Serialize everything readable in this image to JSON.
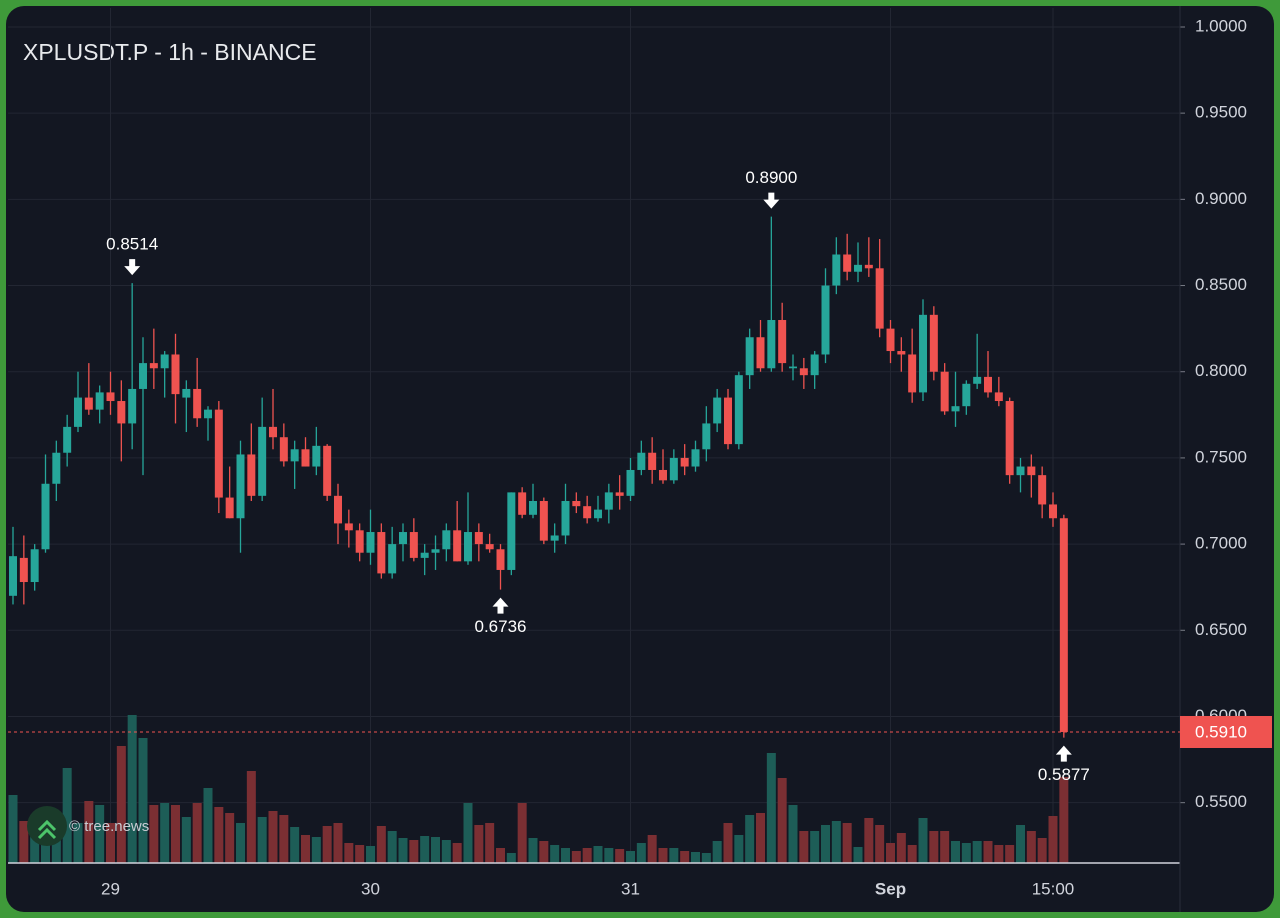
{
  "chart_data": {
    "type": "candlestick",
    "title": "XPLUSDT.P - 1h - BINANCE",
    "watermark": "© tree.news",
    "categories": [
      null,
      null,
      null,
      null,
      null,
      null,
      null,
      null,
      null,
      "29",
      null,
      null,
      null,
      null,
      null,
      null,
      null,
      null,
      null,
      null,
      null,
      null,
      null,
      null,
      null,
      null,
      null,
      null,
      null,
      null,
      null,
      null,
      null,
      "30",
      null,
      null,
      null,
      null,
      null,
      null,
      null,
      null,
      null,
      null,
      null,
      null,
      null,
      null,
      null,
      null,
      null,
      null,
      null,
      null,
      null,
      null,
      null,
      "31",
      null,
      null,
      null,
      null,
      null,
      null,
      null,
      null,
      null,
      null,
      null,
      null,
      null,
      null,
      null,
      null,
      null,
      null,
      null,
      null,
      null,
      null,
      null,
      "Sep",
      null,
      null,
      null,
      null,
      null,
      null,
      null,
      null,
      null,
      null,
      null,
      null,
      null,
      null,
      "15:00",
      null
    ],
    "open": [
      0.67,
      0.692,
      0.678,
      0.697,
      0.735,
      0.753,
      0.768,
      0.785,
      0.778,
      0.788,
      0.783,
      0.77,
      0.79,
      0.805,
      0.802,
      0.81,
      0.785,
      0.79,
      0.773,
      0.778,
      0.727,
      0.715,
      0.752,
      0.728,
      0.768,
      0.762,
      0.748,
      0.755,
      0.745,
      0.757,
      0.728,
      0.712,
      0.708,
      0.695,
      0.707,
      0.683,
      0.7,
      0.707,
      0.692,
      0.695,
      0.697,
      0.708,
      0.69,
      0.707,
      0.7,
      0.697,
      0.685,
      0.73,
      0.717,
      0.725,
      0.702,
      0.705,
      0.725,
      0.722,
      0.715,
      0.72,
      0.73,
      0.728,
      0.743,
      0.753,
      0.743,
      0.737,
      0.75,
      0.745,
      0.755,
      0.77,
      0.785,
      0.758,
      0.798,
      0.82,
      0.802,
      0.83,
      0.802,
      0.802,
      0.798,
      0.81,
      0.85,
      0.868,
      0.858,
      0.862,
      0.86,
      0.825,
      0.812,
      0.81,
      0.788,
      0.833,
      0.8,
      0.777,
      0.78,
      0.793,
      0.797,
      0.788,
      0.783,
      0.74,
      0.745,
      0.74,
      0.723,
      0.715
    ],
    "high": [
      0.71,
      0.705,
      0.7,
      0.752,
      0.76,
      0.775,
      0.8,
      0.805,
      0.792,
      0.8,
      0.795,
      0.8514,
      0.82,
      0.825,
      0.812,
      0.822,
      0.795,
      0.808,
      0.78,
      0.783,
      0.745,
      0.76,
      0.77,
      0.785,
      0.79,
      0.77,
      0.76,
      0.762,
      0.768,
      0.758,
      0.735,
      0.72,
      0.712,
      0.72,
      0.712,
      0.71,
      0.712,
      0.715,
      0.7,
      0.705,
      0.712,
      0.725,
      0.73,
      0.712,
      0.706,
      0.7,
      0.73,
      0.733,
      0.735,
      0.727,
      0.712,
      0.735,
      0.73,
      0.728,
      0.728,
      0.735,
      0.74,
      0.75,
      0.76,
      0.762,
      0.755,
      0.755,
      0.758,
      0.76,
      0.78,
      0.79,
      0.79,
      0.8,
      0.825,
      0.83,
      0.89,
      0.84,
      0.81,
      0.808,
      0.812,
      0.86,
      0.878,
      0.88,
      0.875,
      0.878,
      0.877,
      0.83,
      0.82,
      0.825,
      0.842,
      0.838,
      0.805,
      0.8,
      0.795,
      0.822,
      0.812,
      0.797,
      0.785,
      0.75,
      0.752,
      0.745,
      0.73,
      0.717
    ],
    "low": [
      0.665,
      0.665,
      0.673,
      0.695,
      0.725,
      0.745,
      0.765,
      0.775,
      0.77,
      0.775,
      0.748,
      0.755,
      0.74,
      0.79,
      0.785,
      0.77,
      0.765,
      0.768,
      0.76,
      0.718,
      0.715,
      0.695,
      0.725,
      0.725,
      0.755,
      0.745,
      0.732,
      0.745,
      0.74,
      0.725,
      0.7,
      0.698,
      0.69,
      0.688,
      0.68,
      0.68,
      0.69,
      0.69,
      0.682,
      0.685,
      0.69,
      0.69,
      0.688,
      0.69,
      0.695,
      0.6736,
      0.682,
      0.715,
      0.715,
      0.7,
      0.695,
      0.7,
      0.718,
      0.712,
      0.713,
      0.712,
      0.72,
      0.725,
      0.74,
      0.735,
      0.735,
      0.735,
      0.74,
      0.742,
      0.748,
      0.765,
      0.755,
      0.755,
      0.79,
      0.8,
      0.8,
      0.8,
      0.795,
      0.79,
      0.79,
      0.805,
      0.845,
      0.853,
      0.852,
      0.855,
      0.82,
      0.805,
      0.8,
      0.782,
      0.783,
      0.795,
      0.775,
      0.768,
      0.775,
      0.79,
      0.785,
      0.78,
      0.735,
      0.73,
      0.727,
      0.715,
      0.71,
      0.5877
    ],
    "close": [
      0.693,
      0.678,
      0.697,
      0.735,
      0.753,
      0.768,
      0.785,
      0.778,
      0.788,
      0.783,
      0.77,
      0.79,
      0.805,
      0.802,
      0.81,
      0.787,
      0.79,
      0.773,
      0.778,
      0.727,
      0.715,
      0.752,
      0.728,
      0.768,
      0.762,
      0.748,
      0.755,
      0.745,
      0.757,
      0.728,
      0.712,
      0.708,
      0.695,
      0.707,
      0.683,
      0.7,
      0.707,
      0.692,
      0.695,
      0.697,
      0.708,
      0.69,
      0.707,
      0.7,
      0.697,
      0.685,
      0.73,
      0.717,
      0.725,
      0.702,
      0.705,
      0.725,
      0.722,
      0.715,
      0.72,
      0.73,
      0.728,
      0.743,
      0.753,
      0.743,
      0.737,
      0.75,
      0.745,
      0.755,
      0.77,
      0.785,
      0.758,
      0.798,
      0.82,
      0.802,
      0.83,
      0.805,
      0.803,
      0.798,
      0.81,
      0.85,
      0.868,
      0.858,
      0.862,
      0.86,
      0.825,
      0.812,
      0.81,
      0.788,
      0.833,
      0.8,
      0.777,
      0.78,
      0.793,
      0.797,
      0.788,
      0.783,
      0.74,
      0.745,
      0.74,
      0.723,
      0.715,
      0.591
    ],
    "volume": [
      68,
      42,
      40,
      52,
      40,
      95,
      40,
      62,
      58,
      40,
      117,
      148,
      125,
      58,
      60,
      58,
      46,
      60,
      75,
      56,
      50,
      40,
      92,
      46,
      52,
      48,
      36,
      28,
      26,
      37,
      40,
      20,
      18,
      17,
      37,
      32,
      25,
      23,
      27,
      26,
      23,
      20,
      60,
      38,
      40,
      15,
      10,
      60,
      25,
      22,
      18,
      15,
      12,
      15,
      17,
      15,
      14,
      12,
      20,
      28,
      15,
      15,
      12,
      11,
      10,
      22,
      40,
      28,
      48,
      50,
      110,
      85,
      58,
      32,
      32,
      38,
      42,
      40,
      16,
      45,
      38,
      20,
      30,
      18,
      45,
      32,
      32,
      22,
      20,
      22,
      22,
      18,
      18,
      38,
      32,
      25,
      47,
      86
    ],
    "up_color": "#26a69a",
    "down_color": "#ef5350",
    "up_volume_color": "#1d5d57",
    "down_volume_color": "#7b2f33",
    "ylim": [
      0.515,
      1.011
    ],
    "yticks": [
      {
        "value": 0.55,
        "label": "0.5500"
      },
      {
        "value": 0.6,
        "label": "0.6000"
      },
      {
        "value": 0.65,
        "label": "0.6500"
      },
      {
        "value": 0.7,
        "label": "0.7000"
      },
      {
        "value": 0.75,
        "label": "0.7500"
      },
      {
        "value": 0.8,
        "label": "0.8000"
      },
      {
        "value": 0.85,
        "label": "0.8500"
      },
      {
        "value": 0.9,
        "label": "0.9000"
      },
      {
        "value": 0.95,
        "label": "0.9500"
      },
      {
        "value": 1.0,
        "label": "1.0000"
      }
    ],
    "grid": true,
    "last_price": {
      "value": 0.591,
      "label": "0.5910"
    },
    "annotations": [
      {
        "value": 0.8514,
        "label": "0.8514"
      },
      {
        "value": 0.89,
        "label": "0.8900"
      },
      {
        "value": 0.6736,
        "label": "0.6736"
      },
      {
        "value": 0.5877,
        "label": "0.5877"
      }
    ]
  }
}
